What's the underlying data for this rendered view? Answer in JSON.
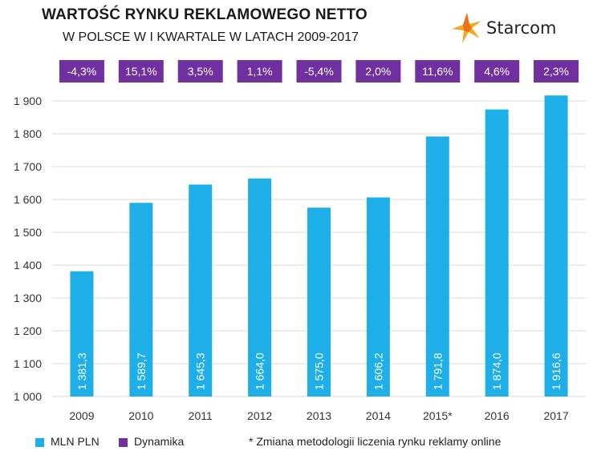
{
  "header": {
    "title": "WARTOŚĆ RYNKU REKLAMOWEGO NETTO",
    "subtitle": "W POLSCE W I KWARTALE W LATACH 2009-2017"
  },
  "logo": {
    "text": "Starcom",
    "icon": "starcom-star-icon"
  },
  "colors": {
    "bar": "#1eaee8",
    "badge": "#7030a0",
    "grid": "#d9d9d9",
    "text": "#333333"
  },
  "chart_data": {
    "type": "bar",
    "title": "WARTOŚĆ RYNKU REKLAMOWEGO NETTO W POLSCE W I KWARTALE W LATACH 2009-2017",
    "categories": [
      "2009",
      "2010",
      "2011",
      "2012",
      "2013",
      "2014",
      "2015*",
      "2016",
      "2017"
    ],
    "series": [
      {
        "name": "MLN PLN",
        "values": [
          1381.3,
          1589.7,
          1645.3,
          1664.0,
          1575.0,
          1606.2,
          1791.8,
          1874.0,
          1916.6
        ],
        "labels": [
          "1 381,3",
          "1 589,7",
          "1 645,3",
          "1 664,0",
          "1 575,0",
          "1 606,2",
          "1 791,8",
          "1 874,0",
          "1 916,6"
        ]
      },
      {
        "name": "Dynamika",
        "labels": [
          "-4,3%",
          "15,1%",
          "3,5%",
          "1,1%",
          "-5,4%",
          "2,0%",
          "11,6%",
          "4,6%",
          "2,3%"
        ]
      }
    ],
    "ylim": [
      1000,
      1900
    ],
    "yticks": [
      1000,
      1100,
      1200,
      1300,
      1400,
      1500,
      1600,
      1700,
      1800,
      1900
    ],
    "ytick_labels": [
      "1 000",
      "1 100",
      "1 200",
      "1 300",
      "1 400",
      "1 500",
      "1 600",
      "1 700",
      "1 800",
      "1 900"
    ],
    "grid": true,
    "xlabel": "",
    "ylabel": ""
  },
  "legend": {
    "bar_label": "MLN PLN",
    "dyn_label": "Dynamika",
    "note": "* Zmiana metodologii liczenia rynku reklamy online"
  }
}
